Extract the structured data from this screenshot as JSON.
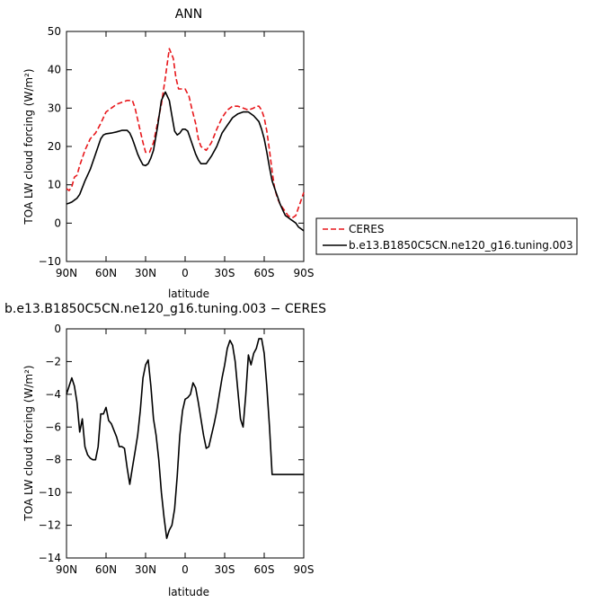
{
  "chart_data": [
    {
      "type": "line",
      "title": "ANN",
      "xlabel": "latitude",
      "ylabel": "TOA LW cloud forcing (W/m²)",
      "xlim": [
        90,
        -90
      ],
      "ylim": [
        -10,
        50
      ],
      "x_ticks": [
        90,
        60,
        30,
        0,
        -30,
        -60,
        -90
      ],
      "x_tick_labels": [
        "90N",
        "60N",
        "30N",
        "0",
        "30S",
        "60S",
        "90S"
      ],
      "y_ticks": [
        -10,
        0,
        10,
        20,
        30,
        40,
        50
      ],
      "y_tick_labels": [
        "−10",
        "0",
        "10",
        "20",
        "30",
        "40",
        "50"
      ],
      "legend_position": "outside-right-bottom",
      "series": [
        {
          "name": "CERES",
          "color": "#e8171b",
          "dash": "dashed",
          "x": [
            90,
            88,
            86,
            84,
            82,
            80,
            76,
            72,
            68,
            64,
            60,
            56,
            52,
            48,
            44,
            40,
            38,
            36,
            34,
            32,
            30,
            27,
            24,
            21,
            18,
            15,
            12,
            9,
            7,
            5,
            3,
            1,
            0,
            -3,
            -5,
            -8,
            -10,
            -12,
            -16,
            -20,
            -24,
            -28,
            -32,
            -36,
            -40,
            -44,
            -48,
            -52,
            -54,
            -56,
            -58,
            -60,
            -62,
            -64,
            -66,
            -68,
            -70,
            -72,
            -74,
            -76,
            -78,
            -80,
            -82,
            -84,
            -86,
            -88,
            -90
          ],
          "y": [
            9,
            8.5,
            9.5,
            12,
            12.5,
            15,
            19,
            22,
            23.5,
            26,
            29,
            30,
            31,
            31.5,
            32,
            32,
            30,
            27,
            24,
            21,
            18.5,
            18.5,
            21,
            26,
            31,
            38,
            45.5,
            43,
            38,
            35,
            35,
            35,
            35,
            33,
            30,
            26,
            22,
            20,
            19,
            21,
            24.5,
            27.5,
            29.5,
            30.5,
            30.5,
            30,
            29.5,
            30,
            30.5,
            30.5,
            29.5,
            27.5,
            24,
            19,
            13.5,
            9,
            6.5,
            5,
            4,
            3,
            2,
            1.5,
            1.5,
            2,
            4,
            6,
            8
          ]
        },
        {
          "name": "b.e13.B1850C5CN.ne120_g16.tuning.003",
          "color": "#000000",
          "dash": "solid",
          "x": [
            90,
            88,
            86,
            84,
            82,
            80,
            76,
            72,
            68,
            64,
            62,
            60,
            56,
            52,
            48,
            44,
            42,
            40,
            38,
            36,
            34,
            32,
            30,
            28,
            26,
            24,
            21,
            18,
            15,
            12,
            10,
            8,
            6,
            4,
            2,
            0,
            -2,
            -4,
            -6,
            -8,
            -10,
            -12,
            -16,
            -20,
            -24,
            -28,
            -32,
            -36,
            -40,
            -44,
            -48,
            -52,
            -56,
            -58,
            -60,
            -62,
            -64,
            -66,
            -68,
            -70,
            -72,
            -74,
            -76,
            -78,
            -80,
            -82,
            -84,
            -86,
            -88,
            -90
          ],
          "y": [
            5,
            5.2,
            5.5,
            6,
            6.5,
            7.5,
            11,
            14,
            18,
            22,
            23,
            23.3,
            23.5,
            23.8,
            24.2,
            24.2,
            23.5,
            22,
            20,
            18,
            16.5,
            15.2,
            15,
            15.5,
            17,
            19,
            25,
            32,
            34.2,
            32,
            28,
            24,
            23,
            23.5,
            24.5,
            24.5,
            24,
            22,
            20,
            18,
            16.5,
            15.5,
            15.5,
            17.5,
            20,
            23.5,
            25.5,
            27.5,
            28.5,
            29,
            29,
            28,
            26.5,
            24.5,
            22,
            18.5,
            14.5,
            11,
            9,
            7,
            5,
            3.5,
            2,
            1.5,
            1,
            0.5,
            0,
            -1,
            -1.5,
            -2
          ]
        }
      ]
    },
    {
      "type": "line",
      "title": "b.e13.B1850C5CN.ne120_g16.tuning.003 − CERES",
      "xlabel": "latitude",
      "ylabel": "TOA LW cloud forcing (W/m²)",
      "xlim": [
        90,
        -90
      ],
      "ylim": [
        -14,
        0
      ],
      "x_ticks": [
        90,
        60,
        30,
        0,
        -30,
        -60,
        -90
      ],
      "x_tick_labels": [
        "90N",
        "60N",
        "30N",
        "0",
        "30S",
        "60S",
        "90S"
      ],
      "y_ticks": [
        -14,
        -12,
        -10,
        -8,
        -6,
        -4,
        -2,
        0
      ],
      "y_tick_labels": [
        "−14",
        "−12",
        "−10",
        "−8",
        "−6",
        "−4",
        "−2",
        "0"
      ],
      "series": [
        {
          "name": "",
          "color": "#000000",
          "dash": "solid",
          "x": [
            90,
            88,
            86,
            84,
            82,
            80,
            78,
            76,
            74,
            72,
            70,
            68,
            66,
            64,
            62,
            60,
            58,
            56,
            54,
            52,
            50,
            48,
            46,
            44,
            42,
            40,
            38,
            36,
            34,
            32,
            30,
            28,
            26,
            24,
            22,
            20,
            18,
            16,
            14,
            12,
            10,
            8,
            6,
            4,
            2,
            0,
            -2,
            -4,
            -6,
            -8,
            -10,
            -12,
            -14,
            -16,
            -18,
            -20,
            -22,
            -24,
            -26,
            -28,
            -30,
            -32,
            -34,
            -36,
            -38,
            -40,
            -42,
            -44,
            -46,
            -48,
            -50,
            -52,
            -54,
            -56,
            -58,
            -60,
            -62,
            -64,
            -66,
            -68,
            -70,
            -72,
            -74,
            -76,
            -78,
            -80,
            -82,
            -84,
            -86,
            -88,
            -90
          ],
          "y": [
            -4,
            -3.5,
            -3,
            -3.5,
            -4.5,
            -6.3,
            -5.5,
            -7.2,
            -7.7,
            -7.9,
            -8,
            -8,
            -7.2,
            -5.2,
            -5.2,
            -4.8,
            -5.6,
            -5.8,
            -6.2,
            -6.6,
            -7.2,
            -7.2,
            -7.3,
            -8.5,
            -9.5,
            -8.5,
            -7.5,
            -6.5,
            -5,
            -3,
            -2.2,
            -1.9,
            -3.5,
            -5.5,
            -6.5,
            -8,
            -10,
            -11.5,
            -12.8,
            -12.3,
            -12,
            -11,
            -9,
            -6.5,
            -5,
            -4.3,
            -4.2,
            -4,
            -3.3,
            -3.6,
            -4.5,
            -5.5,
            -6.5,
            -7.3,
            -7.2,
            -6.5,
            -5.8,
            -5,
            -4,
            -3,
            -2.2,
            -1.2,
            -0.7,
            -1,
            -2,
            -3.8,
            -5.5,
            -6,
            -4,
            -1.6,
            -2.2,
            -1.5,
            -1.2,
            -0.6,
            -0.6,
            -1.5,
            -3.5,
            -6,
            -8.9,
            -8.9,
            -8.9,
            -8.9,
            -8.9,
            -8.9,
            -8.9,
            -8.9,
            -8.9,
            -8.9,
            -8.9,
            -8.9,
            -8.9
          ]
        }
      ]
    }
  ]
}
